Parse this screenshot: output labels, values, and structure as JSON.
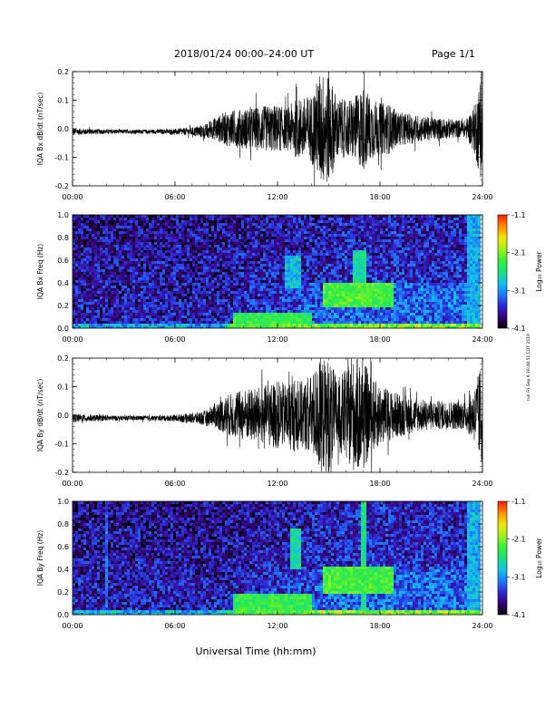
{
  "header": {
    "title": "2018/01/24  00:00–24:00 UT",
    "page": "Page 1/1"
  },
  "xlabel": "Universal Time (hh:mm)",
  "side_stamp": "run Fri Sep 6 16:48:51 CDT 2019",
  "colorbar": {
    "ticks": [
      "-1.1",
      "-2.1",
      "-3.1",
      "-4.1"
    ],
    "label": "Log₁₀ Power",
    "colors": [
      "#000000",
      "#3a007a",
      "#2b2bd6",
      "#1e7bff",
      "#12c4e8",
      "#1ce07a",
      "#38f03a",
      "#a6f01a",
      "#f2e60d",
      "#ff8a00",
      "#ff1a00"
    ]
  },
  "chart_data": [
    {
      "type": "line",
      "ylabel": "IQA Bx dB/dt (nT/sec)",
      "xlim": [
        0,
        24
      ],
      "ylim": [
        -0.2,
        0.2
      ],
      "xticks": [
        "00:00",
        "06:00",
        "12:00",
        "18:00",
        "24:00"
      ],
      "yticks": [
        "0.2",
        "0.1",
        "0.0",
        "-0.1",
        "-0.2"
      ],
      "envelope": {
        "t_hours": [
          0,
          1,
          2,
          3,
          4,
          5,
          6,
          7,
          8,
          8.5,
          9,
          10,
          11,
          11.5,
          12,
          12.5,
          13,
          13.5,
          14,
          14.5,
          15,
          15.5,
          16,
          16.5,
          17,
          17.5,
          18,
          18.5,
          19,
          20,
          21,
          22,
          23,
          23.5,
          24
        ],
        "amplitude": [
          0.012,
          0.01,
          0.008,
          0.007,
          0.007,
          0.008,
          0.01,
          0.015,
          0.03,
          0.045,
          0.06,
          0.07,
          0.08,
          0.08,
          0.085,
          0.07,
          0.1,
          0.11,
          0.12,
          0.2,
          0.2,
          0.11,
          0.1,
          0.11,
          0.15,
          0.11,
          0.09,
          0.09,
          0.06,
          0.05,
          0.04,
          0.035,
          0.03,
          0.08,
          0.2
        ]
      }
    },
    {
      "type": "heatmap",
      "ylabel": "IQA Bx Freq (Hz)",
      "xlim": [
        0,
        24
      ],
      "ylim": [
        0.0,
        1.0
      ],
      "zlim": [
        -4.1,
        -1.1
      ],
      "zlabel": "Log₁₀ Power",
      "xticks": [
        "00:00",
        "06:00",
        "12:00",
        "18:00",
        "24:00"
      ],
      "yticks": [
        "1.0",
        "0.8",
        "0.6",
        "0.4",
        "0.2",
        "0.0"
      ],
      "features": [
        {
          "t": [
            9.5,
            14
          ],
          "f": [
            0.0,
            0.15
          ],
          "power": -2.4
        },
        {
          "t": [
            12.5,
            13.5
          ],
          "f": [
            0.35,
            0.65
          ],
          "power": -2.9
        },
        {
          "t": [
            14.8,
            18.8
          ],
          "f": [
            0.2,
            0.4
          ],
          "power": -2.3
        },
        {
          "t": [
            16.5,
            17.2
          ],
          "f": [
            0.3,
            0.7
          ],
          "power": -2.7
        },
        {
          "t": [
            23.2,
            24
          ],
          "f": [
            0.0,
            1.0
          ],
          "power": -3.0
        }
      ]
    },
    {
      "type": "line",
      "ylabel": "IQA By dB/dt (nT/sec)",
      "xlim": [
        0,
        24
      ],
      "ylim": [
        -0.2,
        0.2
      ],
      "xticks": [
        "00:00",
        "06:00",
        "12:00",
        "18:00",
        "24:00"
      ],
      "yticks": [
        "0.2",
        "0.1",
        "0.0",
        "-0.1",
        "-0.2"
      ],
      "envelope": {
        "t_hours": [
          0,
          1,
          2,
          3,
          4,
          5,
          6,
          7,
          8,
          8.5,
          9,
          10,
          11,
          11.5,
          12,
          12.5,
          13,
          13.5,
          14,
          14.5,
          15,
          15.5,
          16,
          16.5,
          17,
          17.5,
          18,
          18.5,
          19,
          20,
          21,
          22,
          23,
          23.5,
          24
        ],
        "amplitude": [
          0.015,
          0.012,
          0.01,
          0.008,
          0.008,
          0.009,
          0.012,
          0.018,
          0.03,
          0.05,
          0.07,
          0.09,
          0.1,
          0.11,
          0.12,
          0.11,
          0.13,
          0.12,
          0.14,
          0.2,
          0.2,
          0.13,
          0.16,
          0.2,
          0.2,
          0.13,
          0.11,
          0.09,
          0.08,
          0.06,
          0.05,
          0.05,
          0.05,
          0.09,
          0.2
        ]
      }
    },
    {
      "type": "heatmap",
      "ylabel": "IQA By Freq (Hz)",
      "xlim": [
        0,
        24
      ],
      "ylim": [
        0.0,
        1.0
      ],
      "zlim": [
        -4.1,
        -1.1
      ],
      "zlabel": "Log₁₀ Power",
      "xticks": [
        "00:00",
        "06:00",
        "12:00",
        "18:00",
        "24:00"
      ],
      "yticks": [
        "1.0",
        "0.8",
        "0.6",
        "0.4",
        "0.2",
        "0.0"
      ],
      "features": [
        {
          "t": [
            9.5,
            14
          ],
          "f": [
            0.0,
            0.2
          ],
          "power": -2.4
        },
        {
          "t": [
            12.8,
            13.5
          ],
          "f": [
            0.4,
            0.75
          ],
          "power": -2.7
        },
        {
          "t": [
            14.8,
            18.8
          ],
          "f": [
            0.2,
            0.42
          ],
          "power": -2.3
        },
        {
          "t": [
            16.9,
            17.2
          ],
          "f": [
            0.0,
            1.0
          ],
          "power": -2.6
        },
        {
          "t": [
            2.0,
            2.1
          ],
          "f": [
            0.0,
            1.0
          ],
          "power": -3.3
        },
        {
          "t": [
            23.2,
            24
          ],
          "f": [
            0.0,
            1.0
          ],
          "power": -3.0
        }
      ]
    }
  ]
}
